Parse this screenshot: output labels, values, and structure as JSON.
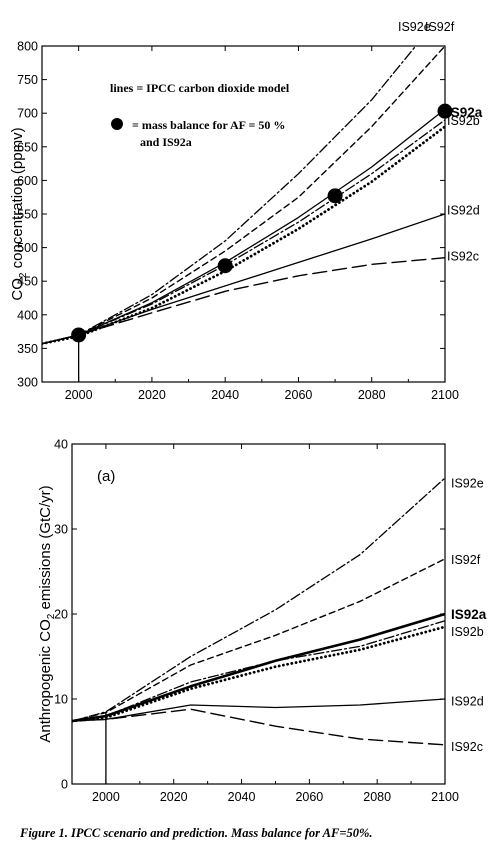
{
  "chart_data": [
    {
      "type": "line",
      "xlabel": "",
      "ylabel": "CO2 concentration (ppmv)",
      "ylabel_base": "CO",
      "ylabel_sub": "2",
      "ylabel_rest": " concentration (ppmv)",
      "xlim": [
        1990,
        2100
      ],
      "ylim": [
        300,
        800
      ],
      "x_ticks": [
        2000,
        2020,
        2040,
        2060,
        2080,
        2100
      ],
      "y_ticks": [
        300,
        350,
        400,
        450,
        500,
        550,
        600,
        650,
        700,
        750,
        800
      ],
      "legend": {
        "line1": "lines = IPCC carbon dioxide model",
        "line2": "= mass balance for AF = 50 %",
        "line3": "and IS92a"
      },
      "series": [
        {
          "name": "IS92e",
          "style": "dashdot",
          "x": [
            1990,
            2000,
            2020,
            2040,
            2060,
            2080,
            2095
          ],
          "y": [
            357,
            370,
            430,
            510,
            610,
            720,
            820
          ]
        },
        {
          "name": "IS92f",
          "style": "dash",
          "x": [
            1990,
            2000,
            2020,
            2040,
            2060,
            2080,
            2100
          ],
          "y": [
            357,
            370,
            425,
            495,
            575,
            680,
            800
          ]
        },
        {
          "name": "IS92a",
          "style": "solid",
          "x": [
            1990,
            2000,
            2020,
            2040,
            2060,
            2080,
            2100
          ],
          "y": [
            357,
            370,
            418,
            478,
            545,
            620,
            706
          ]
        },
        {
          "name": "IS92b",
          "style": "dashdot",
          "x": [
            1990,
            2000,
            2020,
            2040,
            2060,
            2080,
            2100
          ],
          "y": [
            357,
            370,
            416,
            474,
            538,
            610,
            690
          ]
        },
        {
          "name": "",
          "style": "dotted",
          "x": [
            1990,
            2000,
            2020,
            2040,
            2060,
            2080,
            2100
          ],
          "y": [
            357,
            368,
            410,
            465,
            528,
            598,
            680
          ]
        },
        {
          "name": "IS92d",
          "style": "solid",
          "x": [
            1990,
            2000,
            2020,
            2040,
            2060,
            2080,
            2100
          ],
          "y": [
            357,
            370,
            408,
            443,
            478,
            513,
            550
          ]
        },
        {
          "name": "IS92c",
          "style": "longdash",
          "x": [
            1990,
            2000,
            2020,
            2040,
            2060,
            2080,
            2100
          ],
          "y": [
            357,
            370,
            403,
            435,
            458,
            475,
            485
          ]
        }
      ],
      "markers": {
        "x": [
          2000,
          2040,
          2070,
          2100
        ],
        "y": [
          370,
          473,
          577,
          703
        ]
      },
      "series_labels": [
        {
          "text": "IS92e",
          "y": 800
        },
        {
          "text": "IS92f",
          "y": 800
        },
        {
          "text": "IS92a",
          "y": 702
        },
        {
          "text": "IS92b",
          "y": 690
        },
        {
          "text": "IS92d",
          "y": 557
        },
        {
          "text": "IS92c",
          "y": 488
        }
      ]
    },
    {
      "type": "line",
      "xlabel": "",
      "ylabel": "Anthropogenic CO2 emissions (GtC/yr)",
      "ylabel_base": "Anthropogenic CO",
      "ylabel_sub": "2",
      "ylabel_rest": " emissions (GtC/yr)",
      "panel_label": "(a)",
      "xlim": [
        1990,
        2100
      ],
      "ylim": [
        0,
        40
      ],
      "x_ticks": [
        2000,
        2020,
        2040,
        2060,
        2080,
        2100
      ],
      "y_ticks": [
        0,
        10,
        20,
        30,
        40
      ],
      "series": [
        {
          "name": "IS92e",
          "style": "dashdot",
          "x": [
            1990,
            2000,
            2025,
            2050,
            2075,
            2100
          ],
          "y": [
            7.4,
            8.5,
            15.0,
            20.5,
            27.0,
            36.0
          ]
        },
        {
          "name": "IS92f",
          "style": "dash",
          "x": [
            1990,
            2000,
            2025,
            2050,
            2075,
            2100
          ],
          "y": [
            7.4,
            8.4,
            14.0,
            17.5,
            21.5,
            26.5
          ]
        },
        {
          "name": "IS92a",
          "style": "thick",
          "x": [
            1990,
            2000,
            2025,
            2050,
            2075,
            2100
          ],
          "y": [
            7.4,
            8.0,
            11.5,
            14.5,
            17.0,
            20.0
          ]
        },
        {
          "name": "IS92b",
          "style": "dashdot",
          "x": [
            1990,
            2000,
            2025,
            2050,
            2075,
            2100
          ],
          "y": [
            7.4,
            8.0,
            12.0,
            14.5,
            16.2,
            19.2
          ]
        },
        {
          "name": "",
          "style": "dotted",
          "x": [
            1990,
            2000,
            2025,
            2050,
            2075,
            2100
          ],
          "y": [
            7.4,
            7.8,
            11.2,
            13.8,
            15.8,
            18.5
          ]
        },
        {
          "name": "IS92d",
          "style": "solid",
          "x": [
            1990,
            2000,
            2025,
            2050,
            2075,
            2100
          ],
          "y": [
            7.4,
            7.6,
            9.3,
            9.0,
            9.3,
            10.0
          ]
        },
        {
          "name": "IS92c",
          "style": "longdash",
          "x": [
            1990,
            2000,
            2025,
            2050,
            2075,
            2100
          ],
          "y": [
            7.4,
            7.6,
            8.8,
            6.8,
            5.3,
            4.6
          ]
        }
      ],
      "series_labels": [
        {
          "text": "IS92e",
          "y": 35.5
        },
        {
          "text": "IS92f",
          "y": 26.5
        },
        {
          "text": "IS92a",
          "y": 20.0
        },
        {
          "text": "IS92b",
          "y": 18.0
        },
        {
          "text": "IS92d",
          "y": 9.8
        },
        {
          "text": "IS92c",
          "y": 4.5
        }
      ]
    }
  ],
  "caption": "Figure 1. IPCC scenario and prediction. Mass balance for AF=50%."
}
